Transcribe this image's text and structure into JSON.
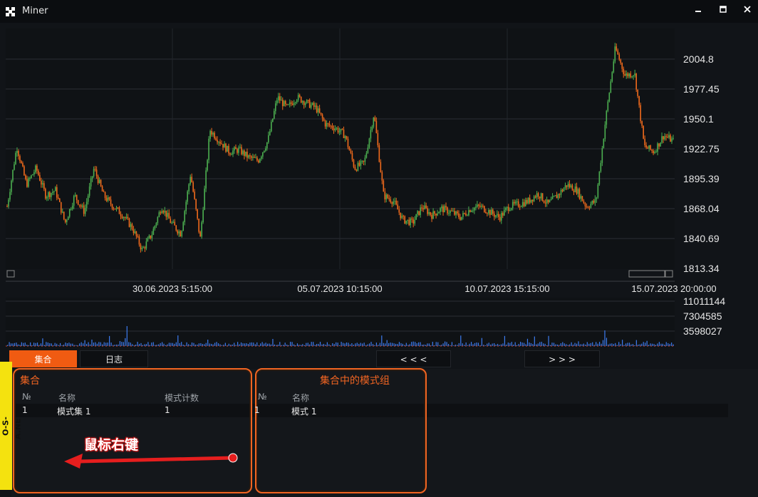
{
  "window": {
    "title": "Miner"
  },
  "chart_data": {
    "type": "candlestick",
    "price_ticks": [
      "2004.8",
      "1977.45",
      "1950.1",
      "1922.75",
      "1895.39",
      "1868.04",
      "1840.69",
      "1813.34"
    ],
    "x_ticks": [
      "30.06.2023 5:15:00",
      "05.07.2023 10:15:00",
      "10.07.2023 15:15:00",
      "15.07.2023 20:00:00"
    ],
    "ylim": [
      1813.34,
      2004.8
    ],
    "price_path": [
      1870,
      1925,
      1890,
      1905,
      1880,
      1885,
      1855,
      1880,
      1865,
      1905,
      1880,
      1870,
      1862,
      1850,
      1830,
      1845,
      1870,
      1855,
      1845,
      1900,
      1840,
      1940,
      1930,
      1920,
      1922,
      1915,
      1912,
      1930,
      1970,
      1960,
      1970,
      1965,
      1960,
      1945,
      1942,
      1935,
      1905,
      1910,
      1955,
      1880,
      1875,
      1858,
      1855,
      1870,
      1862,
      1868,
      1865,
      1860,
      1868,
      1870,
      1865,
      1860,
      1870,
      1872,
      1875,
      1882,
      1872,
      1880,
      1890,
      1885,
      1870,
      1875,
      1950,
      2015,
      1990,
      1992,
      1925,
      1920,
      1935,
      1930
    ],
    "volume_ticks": [
      "11011144",
      "7304585",
      "3598027"
    ],
    "colors": {
      "up": "#4caf50",
      "down": "#f06a1c",
      "volume": "#3d7cf0",
      "grid": "#2b2f35"
    }
  },
  "tabs": {
    "set": "集合",
    "log": "日志",
    "prev": "< < <",
    "next": "> > >"
  },
  "side_brand": "O-S-A.NET",
  "left_panel": {
    "title": "集合",
    "columns": [
      "№",
      "名称",
      "模式计数"
    ],
    "rows": [
      {
        "num": "1",
        "name": "模式集 1",
        "count": "1"
      }
    ]
  },
  "right_panel": {
    "title": "集合中的模式组",
    "columns": [
      "№",
      "名称"
    ],
    "rows": [
      {
        "num": "1",
        "name": "模式 1"
      }
    ]
  },
  "annotation": {
    "text": "鼠标右键"
  }
}
